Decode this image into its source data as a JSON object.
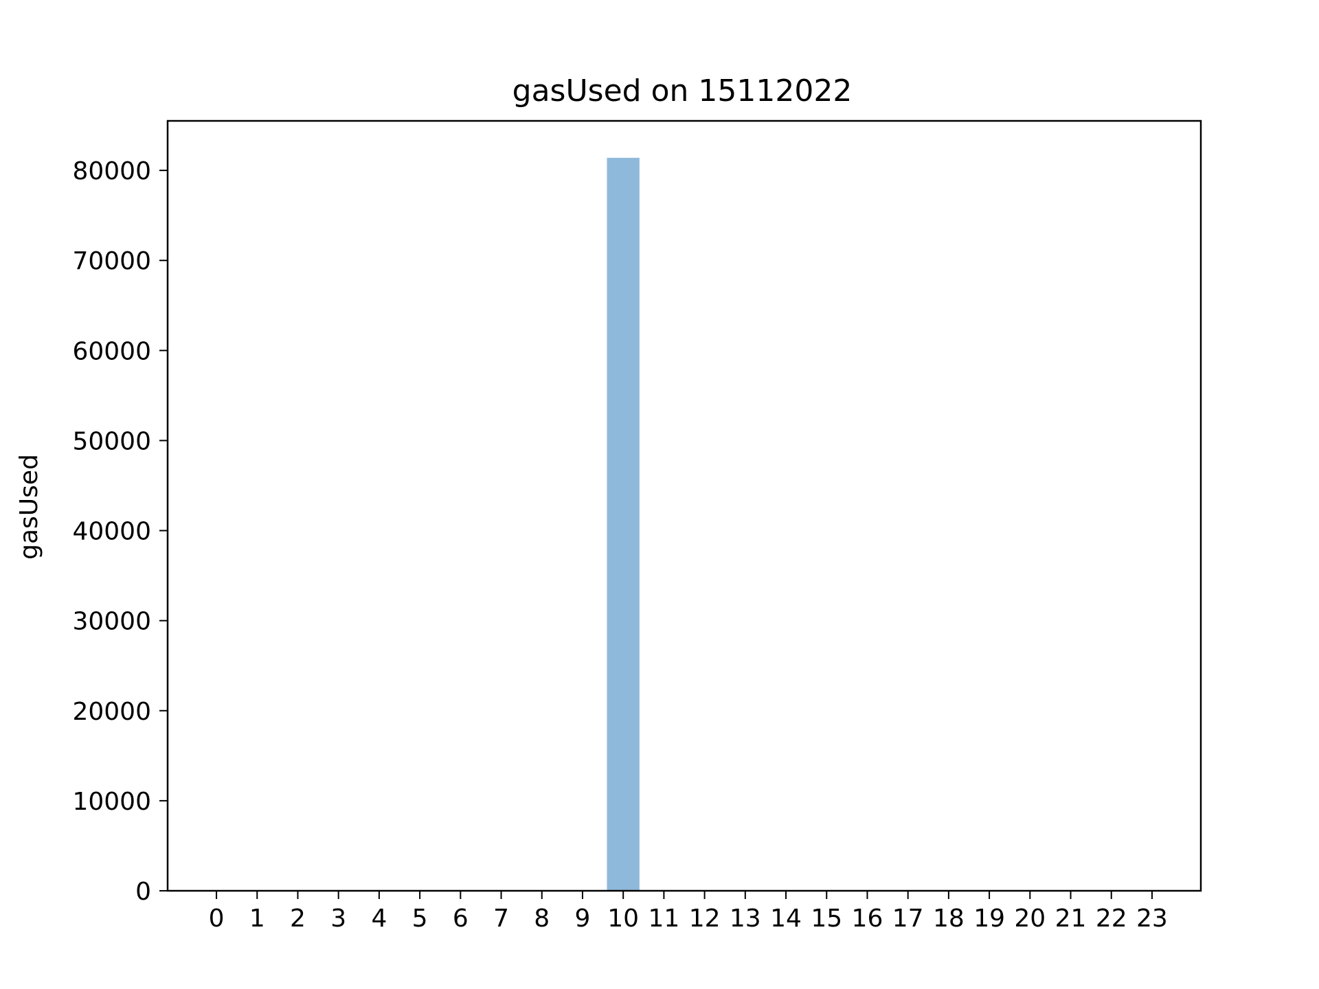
{
  "chart_data": {
    "type": "bar",
    "title": "gasUsed on 15112022",
    "xlabel": "",
    "ylabel": "gasUsed",
    "categories": [
      "0",
      "1",
      "2",
      "3",
      "4",
      "5",
      "6",
      "7",
      "8",
      "9",
      "10",
      "11",
      "12",
      "13",
      "14",
      "15",
      "16",
      "17",
      "18",
      "19",
      "20",
      "21",
      "22",
      "23"
    ],
    "values": [
      0,
      0,
      0,
      0,
      0,
      0,
      0,
      0,
      0,
      0,
      81400,
      0,
      0,
      0,
      0,
      0,
      0,
      0,
      0,
      0,
      0,
      0,
      0,
      0
    ],
    "ylim": [
      0,
      85500
    ],
    "yticks": [
      0,
      10000,
      20000,
      30000,
      40000,
      50000,
      60000,
      70000,
      80000
    ],
    "grid": false,
    "legend": "none",
    "colors": {
      "bar": "#8fb9da",
      "axis": "#000000",
      "background": "#ffffff"
    }
  }
}
